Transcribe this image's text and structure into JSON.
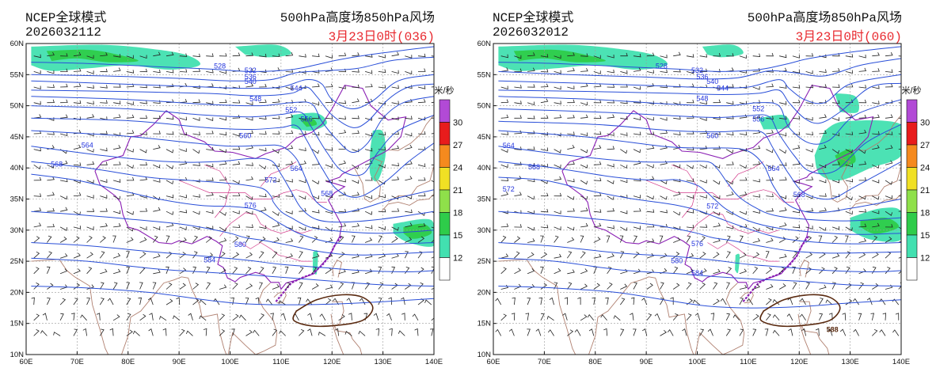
{
  "panels": [
    {
      "id": "left",
      "source_label": "NCEP全球模式",
      "run_time": "2026032112",
      "field_title": "500hPa高度场850hPa风场",
      "valid_time": "3月23日0时(036)",
      "contour_labels": [
        "528",
        "532",
        "536",
        "540",
        "544",
        "548",
        "552",
        "556",
        "560",
        "564",
        "568",
        "564",
        "568",
        "572",
        "576",
        "580",
        "584"
      ],
      "high_label": ""
    },
    {
      "id": "right",
      "source_label": "NCEP全球模式",
      "run_time": "2026032012",
      "field_title": "500hPa高度场850hPa风场",
      "valid_time": "3月23日0时(060)",
      "contour_labels": [
        "528",
        "532",
        "536",
        "540",
        "544",
        "548",
        "552",
        "556",
        "560",
        "564",
        "568",
        "572",
        "564",
        "568",
        "572",
        "576",
        "580",
        "584"
      ],
      "high_label": "588"
    }
  ],
  "map": {
    "lon_labels": [
      "60E",
      "70E",
      "80E",
      "90E",
      "100E",
      "110E",
      "120E",
      "130E",
      "140E"
    ],
    "lat_labels": [
      "60N",
      "55N",
      "50N",
      "45N",
      "40N",
      "35N",
      "30N",
      "25N",
      "20N",
      "15N",
      "10N"
    ],
    "lon_range": [
      60,
      140
    ],
    "lat_range": [
      10,
      60
    ]
  },
  "colorbar": {
    "unit": "米/秒",
    "levels": [
      "30",
      "27",
      "24",
      "21",
      "18",
      "15",
      "12"
    ],
    "colors": [
      "#b24ad6",
      "#e81c1c",
      "#f58a1e",
      "#f0e024",
      "#8fe04a",
      "#2ecc4a",
      "#42e0b0",
      "#ffffff"
    ]
  },
  "colors": {
    "contour": "#2a4fd8",
    "border_china": "#8a1fb4",
    "border_province": "#d43c8c",
    "coast": "#b08070",
    "barb": "#222222",
    "high_contour": "#5a2a10",
    "grid": "#999999"
  }
}
